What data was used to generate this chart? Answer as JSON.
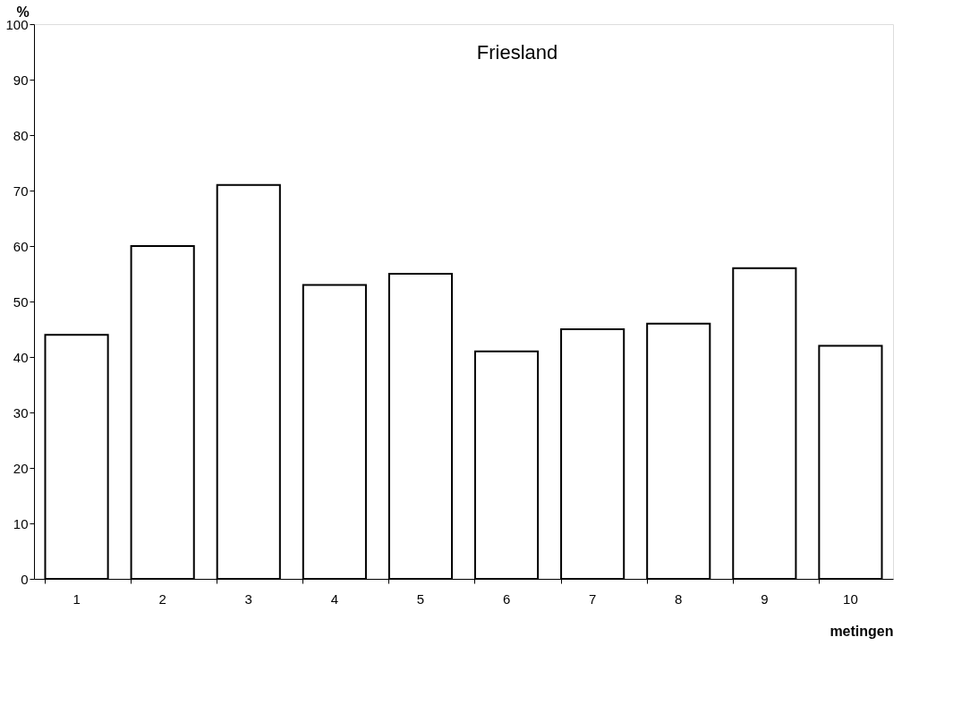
{
  "chart_data": {
    "type": "bar",
    "title": "Friesland",
    "xlabel": "metingen",
    "ylabel": "%",
    "categories": [
      "1",
      "2",
      "3",
      "4",
      "5",
      "6",
      "7",
      "8",
      "9",
      "10"
    ],
    "values": [
      44,
      60,
      71,
      53,
      55,
      41,
      45,
      46,
      56,
      42
    ],
    "color": "#ffffff",
    "ylim": [
      0,
      100
    ],
    "yticks": [
      0,
      10,
      20,
      30,
      40,
      50,
      60,
      70,
      80,
      90,
      100
    ],
    "grid": false
  }
}
